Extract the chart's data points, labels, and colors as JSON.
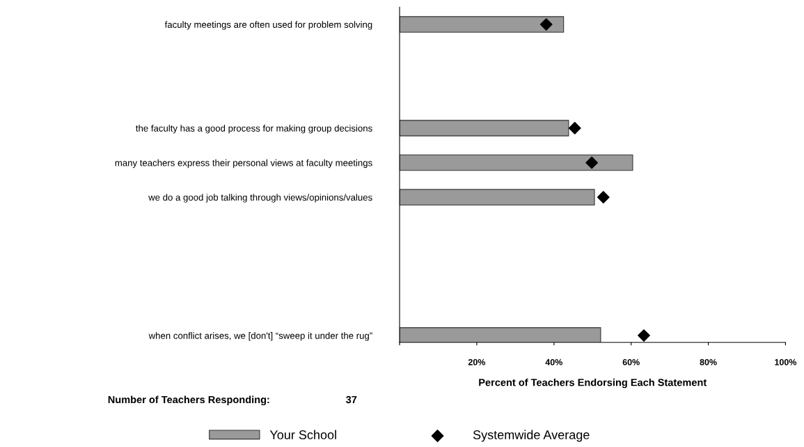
{
  "chart_data": {
    "type": "bar",
    "orientation": "horizontal",
    "categories": [
      "faculty meetings are often used for problem solving",
      null,
      null,
      "the faculty has a good process for making group decisions",
      "many teachers express their personal views at faculty meetings",
      "we do a good job talking through views/opinions/values",
      null,
      null,
      null,
      "when conflict arises, we [don't] “sweep it under the rug”"
    ],
    "series": [
      {
        "name": "Your School",
        "color": "#9a9a9a",
        "values": [
          42.5,
          null,
          null,
          43.8,
          60.4,
          50.5,
          null,
          null,
          null,
          52.1
        ]
      },
      {
        "name": "Systemwide Average",
        "type": "scatter",
        "marker": "diamond",
        "color": "#000000",
        "values": [
          38,
          null,
          null,
          45.4,
          49.8,
          52.8,
          null,
          null,
          null,
          63.3
        ]
      }
    ],
    "xlim": [
      0,
      100
    ],
    "xticks": [
      {
        "value": 0,
        "label": null
      },
      {
        "value": 20,
        "label": "20%"
      },
      {
        "value": 40,
        "label": "40%"
      },
      {
        "value": 60,
        "label": "60%"
      },
      {
        "value": 80,
        "label": "80%"
      },
      {
        "value": 100,
        "label": "100%"
      }
    ],
    "xlabel": "Percent of Teachers Endorsing Each Statement",
    "annotations": [
      "Number of Teachers Responding:",
      "37"
    ],
    "legend": "bottom",
    "grid": false
  }
}
